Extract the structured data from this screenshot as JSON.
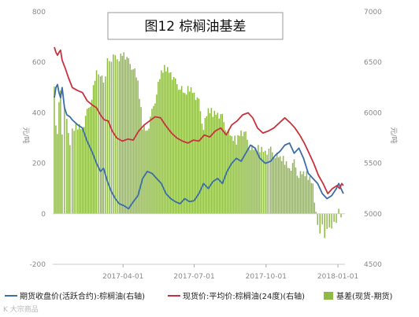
{
  "chart_data": {
    "type": "bar+line",
    "title": "图12 棕榈油基差",
    "left_axis": {
      "label": "元/吨",
      "ylim": [
        -200,
        800
      ],
      "ticks": [
        -200,
        0,
        200,
        400,
        600,
        800
      ]
    },
    "right_axis": {
      "label": "元/吨",
      "ylim": [
        4500,
        7000
      ],
      "ticks": [
        4500,
        5000,
        5500,
        6000,
        6500,
        7000
      ]
    },
    "x_range": [
      "2017-01-01",
      "2018-01-10"
    ],
    "x_ticks": [
      "2017-04-01",
      "2017-07-01",
      "2017-10-01",
      "2018-01-01"
    ],
    "grid": false,
    "legend_position": "bottom",
    "series": [
      {
        "name": "期货收盘价(活跃合约):棕榈油(右轴)",
        "type": "line",
        "axis": "right",
        "color": "#3b6ea8",
        "points": [
          [
            "2017-01-03",
            6150
          ],
          [
            "2017-01-05",
            6250
          ],
          [
            "2017-01-07",
            6280
          ],
          [
            "2017-01-09",
            6200
          ],
          [
            "2017-01-11",
            6150
          ],
          [
            "2017-01-13",
            6250
          ],
          [
            "2017-01-16",
            6050
          ],
          [
            "2017-01-19",
            5980
          ],
          [
            "2017-01-23",
            5960
          ],
          [
            "2017-01-26",
            5930
          ],
          [
            "2017-02-02",
            5880
          ],
          [
            "2017-02-08",
            5850
          ],
          [
            "2017-02-14",
            5720
          ],
          [
            "2017-02-20",
            5620
          ],
          [
            "2017-02-26",
            5500
          ],
          [
            "2017-03-03",
            5420
          ],
          [
            "2017-03-07",
            5450
          ],
          [
            "2017-03-12",
            5320
          ],
          [
            "2017-03-17",
            5220
          ],
          [
            "2017-03-22",
            5150
          ],
          [
            "2017-03-27",
            5100
          ],
          [
            "2017-04-02",
            5080
          ],
          [
            "2017-04-08",
            5050
          ],
          [
            "2017-04-14",
            5120
          ],
          [
            "2017-04-20",
            5180
          ],
          [
            "2017-04-26",
            5350
          ],
          [
            "2017-05-02",
            5420
          ],
          [
            "2017-05-08",
            5400
          ],
          [
            "2017-05-14",
            5350
          ],
          [
            "2017-05-20",
            5300
          ],
          [
            "2017-05-26",
            5200
          ],
          [
            "2017-06-01",
            5150
          ],
          [
            "2017-06-07",
            5120
          ],
          [
            "2017-06-13",
            5100
          ],
          [
            "2017-06-19",
            5150
          ],
          [
            "2017-06-25",
            5120
          ],
          [
            "2017-07-01",
            5130
          ],
          [
            "2017-07-07",
            5200
          ],
          [
            "2017-07-13",
            5300
          ],
          [
            "2017-07-19",
            5250
          ],
          [
            "2017-07-25",
            5320
          ],
          [
            "2017-07-31",
            5350
          ],
          [
            "2017-08-06",
            5300
          ],
          [
            "2017-08-12",
            5420
          ],
          [
            "2017-08-18",
            5500
          ],
          [
            "2017-08-24",
            5550
          ],
          [
            "2017-08-30",
            5520
          ],
          [
            "2017-09-05",
            5600
          ],
          [
            "2017-09-11",
            5680
          ],
          [
            "2017-09-17",
            5650
          ],
          [
            "2017-09-23",
            5550
          ],
          [
            "2017-09-30",
            5500
          ],
          [
            "2017-10-07",
            5520
          ],
          [
            "2017-10-13",
            5580
          ],
          [
            "2017-10-19",
            5620
          ],
          [
            "2017-10-25",
            5680
          ],
          [
            "2017-10-31",
            5700
          ],
          [
            "2017-11-06",
            5600
          ],
          [
            "2017-11-12",
            5650
          ],
          [
            "2017-11-18",
            5550
          ],
          [
            "2017-11-24",
            5400
          ],
          [
            "2017-11-30",
            5350
          ],
          [
            "2017-12-06",
            5300
          ],
          [
            "2017-12-12",
            5200
          ],
          [
            "2017-12-18",
            5150
          ],
          [
            "2017-12-24",
            5180
          ],
          [
            "2017-12-30",
            5250
          ],
          [
            "2018-01-02",
            5300
          ],
          [
            "2018-01-05",
            5250
          ],
          [
            "2018-01-08",
            5200
          ]
        ]
      },
      {
        "name": "现货价:平均价:棕榈油(24度)(右轴)",
        "type": "line",
        "axis": "right",
        "color": "#c8323c",
        "points": [
          [
            "2017-01-03",
            6650
          ],
          [
            "2017-01-05",
            6600
          ],
          [
            "2017-01-07",
            6570
          ],
          [
            "2017-01-09",
            6600
          ],
          [
            "2017-01-11",
            6620
          ],
          [
            "2017-01-13",
            6520
          ],
          [
            "2017-01-17",
            6440
          ],
          [
            "2017-01-21",
            6350
          ],
          [
            "2017-01-26",
            6250
          ],
          [
            "2017-02-02",
            6220
          ],
          [
            "2017-02-08",
            6200
          ],
          [
            "2017-02-14",
            6120
          ],
          [
            "2017-02-20",
            6080
          ],
          [
            "2017-02-26",
            6050
          ],
          [
            "2017-03-03",
            5980
          ],
          [
            "2017-03-08",
            5930
          ],
          [
            "2017-03-13",
            5920
          ],
          [
            "2017-03-18",
            5820
          ],
          [
            "2017-03-24",
            5750
          ],
          [
            "2017-03-31",
            5720
          ],
          [
            "2017-04-07",
            5740
          ],
          [
            "2017-04-14",
            5730
          ],
          [
            "2017-04-21",
            5820
          ],
          [
            "2017-04-28",
            5880
          ],
          [
            "2017-05-05",
            5920
          ],
          [
            "2017-05-12",
            5960
          ],
          [
            "2017-05-19",
            5950
          ],
          [
            "2017-05-26",
            5870
          ],
          [
            "2017-06-02",
            5800
          ],
          [
            "2017-06-09",
            5750
          ],
          [
            "2017-06-16",
            5720
          ],
          [
            "2017-06-23",
            5700
          ],
          [
            "2017-06-30",
            5730
          ],
          [
            "2017-07-07",
            5720
          ],
          [
            "2017-07-14",
            5780
          ],
          [
            "2017-07-21",
            5760
          ],
          [
            "2017-07-28",
            5820
          ],
          [
            "2017-08-04",
            5850
          ],
          [
            "2017-08-11",
            5780
          ],
          [
            "2017-08-18",
            5880
          ],
          [
            "2017-08-25",
            5920
          ],
          [
            "2017-09-01",
            5980
          ],
          [
            "2017-09-08",
            6000
          ],
          [
            "2017-09-14",
            5950
          ],
          [
            "2017-09-20",
            5850
          ],
          [
            "2017-09-27",
            5800
          ],
          [
            "2017-10-04",
            5820
          ],
          [
            "2017-10-11",
            5850
          ],
          [
            "2017-10-18",
            5900
          ],
          [
            "2017-10-25",
            5950
          ],
          [
            "2017-11-01",
            5900
          ],
          [
            "2017-11-07",
            5850
          ],
          [
            "2017-11-13",
            5780
          ],
          [
            "2017-11-19",
            5700
          ],
          [
            "2017-11-25",
            5600
          ],
          [
            "2017-12-01",
            5500
          ],
          [
            "2017-12-07",
            5380
          ],
          [
            "2017-12-13",
            5300
          ],
          [
            "2017-12-19",
            5200
          ],
          [
            "2017-12-25",
            5250
          ],
          [
            "2017-12-31",
            5280
          ],
          [
            "2018-01-03",
            5250
          ],
          [
            "2018-01-06",
            5300
          ],
          [
            "2018-01-08",
            5280
          ]
        ]
      },
      {
        "name": "基差(现货-期货)",
        "type": "bar",
        "axis": "left",
        "color": "#8fba45",
        "points": [
          [
            "2017-01-03",
            520
          ],
          [
            "2017-01-05",
            350
          ],
          [
            "2017-01-07",
            300
          ],
          [
            "2017-01-09",
            450
          ],
          [
            "2017-01-11",
            480
          ],
          [
            "2017-01-13",
            330
          ],
          [
            "2017-01-16",
            420
          ],
          [
            "2017-01-19",
            360
          ],
          [
            "2017-01-23",
            280
          ],
          [
            "2017-01-26",
            330
          ],
          [
            "2017-02-02",
            350
          ],
          [
            "2017-02-08",
            340
          ],
          [
            "2017-02-14",
            400
          ],
          [
            "2017-02-20",
            460
          ],
          [
            "2017-02-26",
            560
          ],
          [
            "2017-03-03",
            560
          ],
          [
            "2017-03-07",
            520
          ],
          [
            "2017-03-12",
            600
          ],
          [
            "2017-03-17",
            610
          ],
          [
            "2017-03-22",
            620
          ],
          [
            "2017-03-27",
            620
          ],
          [
            "2017-04-02",
            640
          ],
          [
            "2017-04-08",
            600
          ],
          [
            "2017-04-14",
            580
          ],
          [
            "2017-04-20",
            520
          ],
          [
            "2017-04-26",
            350
          ],
          [
            "2017-05-02",
            330
          ],
          [
            "2017-05-08",
            400
          ],
          [
            "2017-05-14",
            480
          ],
          [
            "2017-05-20",
            560
          ],
          [
            "2017-05-26",
            580
          ],
          [
            "2017-06-01",
            560
          ],
          [
            "2017-06-07",
            520
          ],
          [
            "2017-06-13",
            500
          ],
          [
            "2017-06-19",
            470
          ],
          [
            "2017-06-25",
            500
          ],
          [
            "2017-07-01",
            480
          ],
          [
            "2017-07-07",
            440
          ],
          [
            "2017-07-13",
            340
          ],
          [
            "2017-07-19",
            410
          ],
          [
            "2017-07-25",
            400
          ],
          [
            "2017-07-31",
            400
          ],
          [
            "2017-08-06",
            380
          ],
          [
            "2017-08-12",
            330
          ],
          [
            "2017-08-18",
            300
          ],
          [
            "2017-08-24",
            290
          ],
          [
            "2017-08-30",
            330
          ],
          [
            "2017-09-05",
            310
          ],
          [
            "2017-09-11",
            260
          ],
          [
            "2017-09-17",
            250
          ],
          [
            "2017-09-23",
            260
          ],
          [
            "2017-09-30",
            250
          ],
          [
            "2017-10-07",
            250
          ],
          [
            "2017-10-13",
            230
          ],
          [
            "2017-10-19",
            220
          ],
          [
            "2017-10-25",
            210
          ],
          [
            "2017-10-31",
            180
          ],
          [
            "2017-11-06",
            200
          ],
          [
            "2017-11-12",
            150
          ],
          [
            "2017-11-18",
            160
          ],
          [
            "2017-11-24",
            150
          ],
          [
            "2017-11-30",
            120
          ],
          [
            "2017-12-06",
            -60
          ],
          [
            "2017-12-09",
            -70
          ],
          [
            "2017-12-12",
            -50
          ],
          [
            "2017-12-15",
            -80
          ],
          [
            "2017-12-18",
            -60
          ],
          [
            "2017-12-21",
            -70
          ],
          [
            "2017-12-24",
            -50
          ],
          [
            "2017-12-27",
            -40
          ],
          [
            "2017-12-30",
            -20
          ],
          [
            "2018-01-02",
            20
          ],
          [
            "2018-01-05",
            -30
          ],
          [
            "2018-01-08",
            -40
          ]
        ]
      }
    ]
  },
  "watermark": "K 大宗商品"
}
